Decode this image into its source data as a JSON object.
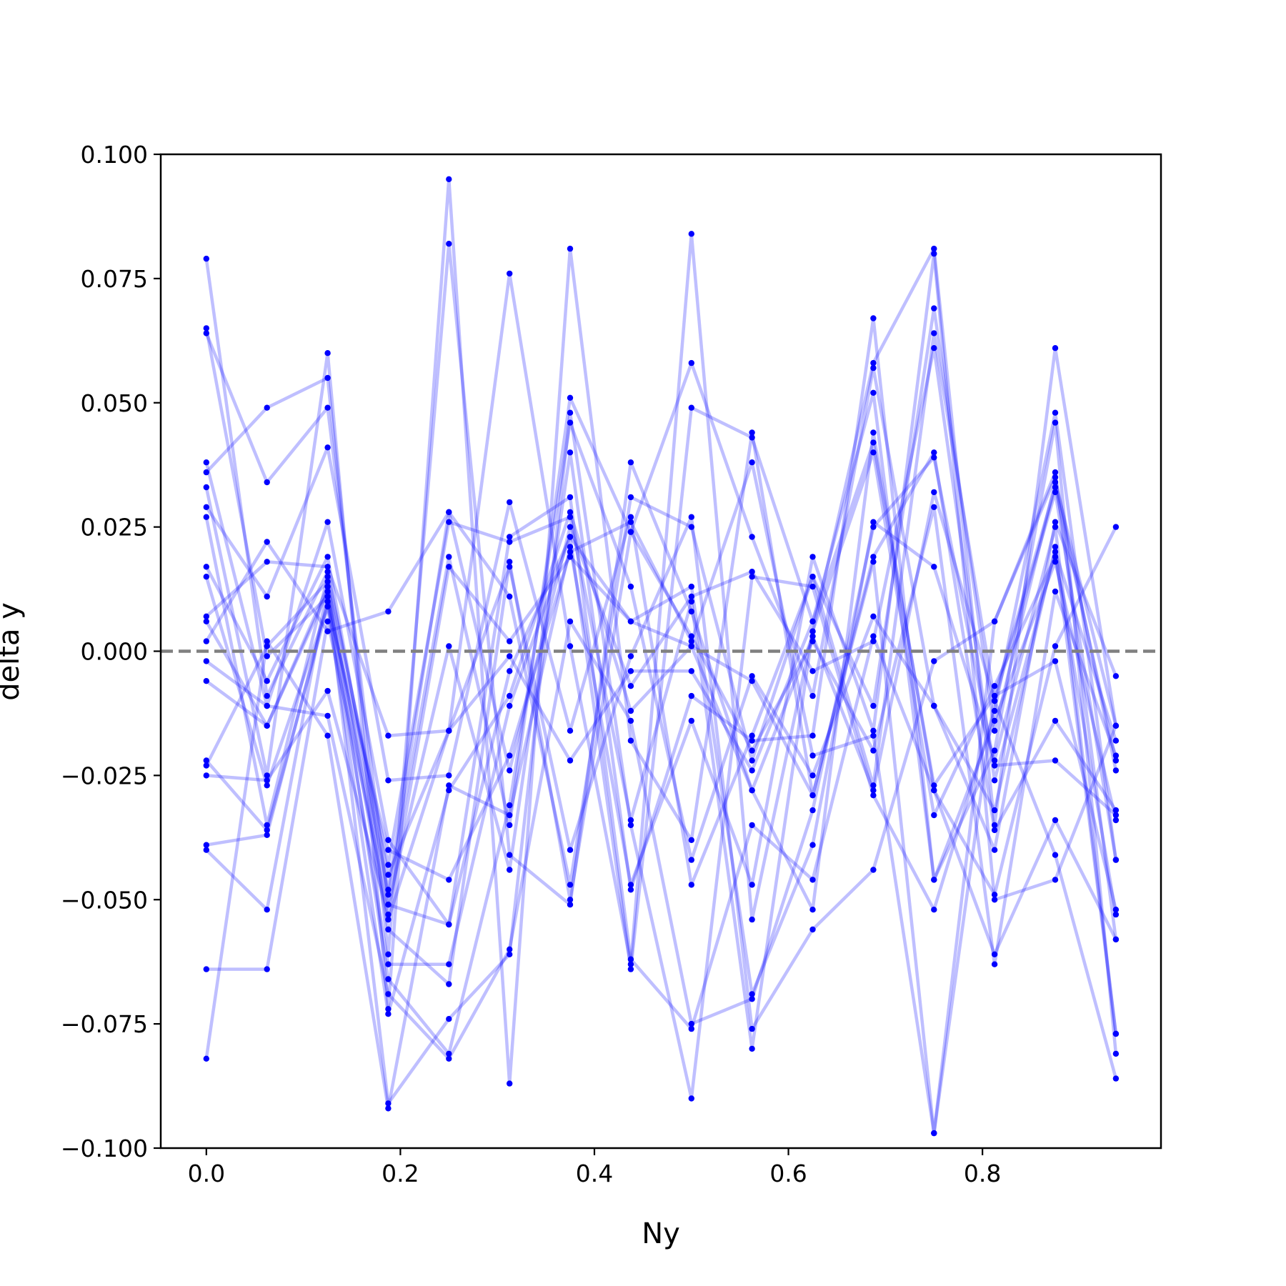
{
  "chart_data": {
    "type": "line",
    "xlabel": "Ny",
    "ylabel": "delta y",
    "xlim": [
      -0.047,
      0.984
    ],
    "ylim": [
      -0.1,
      0.1
    ],
    "x_ticks": [
      0.0,
      0.2,
      0.4,
      0.6,
      0.8
    ],
    "x_tick_labels": [
      "0.0",
      "0.2",
      "0.4",
      "0.6",
      "0.8"
    ],
    "y_ticks": [
      -0.1,
      -0.075,
      -0.05,
      -0.025,
      0.0,
      0.025,
      0.05,
      0.075,
      0.1
    ],
    "y_tick_labels": [
      "−0.100",
      "−0.075",
      "−0.050",
      "−0.025",
      "0.000",
      "0.025",
      "0.050",
      "0.075",
      "0.100"
    ],
    "reference_line": {
      "y": 0.0,
      "style": "dashed",
      "color": "#808080"
    },
    "line_color": "#0000ff",
    "line_opacity": 0.25,
    "marker_color": "#0000ff",
    "x": [
      0.0,
      0.0625,
      0.125,
      0.1875,
      0.25,
      0.3125,
      0.375,
      0.4375,
      0.5,
      0.5625,
      0.625,
      0.6875,
      0.75,
      0.8125,
      0.875,
      0.9375
    ],
    "series": [
      {
        "values": [
          0.079,
          -0.009,
          0.016,
          -0.045,
          -0.016,
          0.076,
          0.001,
          -0.063,
          0.084,
          -0.054,
          0.004,
          0.058,
          0.081,
          -0.035,
          0.061,
          -0.015
        ]
      },
      {
        "values": [
          0.065,
          -0.001,
          0.011,
          -0.048,
          0.028,
          0.011,
          -0.047,
          0.031,
          0.025,
          -0.022,
          0.015,
          -0.027,
          0.064,
          -0.01,
          0.032,
          -0.042
        ]
      },
      {
        "values": [
          0.064,
          0.034,
          0.049,
          -0.051,
          0.001,
          -0.044,
          0.04,
          -0.048,
          -0.009,
          -0.018,
          -0.017,
          0.067,
          -0.046,
          -0.02,
          0.046,
          -0.081
        ]
      },
      {
        "values": [
          0.038,
          -0.011,
          0.026,
          -0.038,
          -0.055,
          -0.004,
          0.023,
          0.006,
          0.013,
          -0.069,
          -0.039,
          0.026,
          0.017,
          -0.022,
          0.025,
          -0.077
        ]
      },
      {
        "values": [
          0.036,
          0.049,
          0.055,
          -0.061,
          0.082,
          -0.041,
          -0.051,
          0.038,
          0.008,
          -0.028,
          -0.052,
          0.044,
          -0.028,
          -0.049,
          0.001,
          0.025
        ]
      },
      {
        "values": [
          0.033,
          -0.025,
          0.06,
          -0.072,
          0.095,
          -0.087,
          0.081,
          -0.018,
          -0.038,
          0.044,
          -0.029,
          0.018,
          -0.097,
          0.006,
          0.036,
          -0.058
        ]
      },
      {
        "values": [
          0.029,
          0.011,
          0.041,
          -0.026,
          -0.025,
          0.03,
          -0.016,
          0.027,
          -0.047,
          -0.017,
          0.015,
          -0.011,
          0.069,
          -0.016,
          0.034,
          -0.015
        ]
      },
      {
        "values": [
          0.027,
          -0.035,
          0.015,
          -0.043,
          0.026,
          0.022,
          0.027,
          -0.034,
          0.01,
          -0.08,
          0.004,
          0.04,
          -0.033,
          -0.007,
          0.019,
          -0.053
        ]
      },
      {
        "values": [
          0.017,
          -0.006,
          0.019,
          -0.049,
          0.019,
          -0.035,
          0.051,
          0.024,
          0.003,
          -0.02,
          0.002,
          -0.02,
          0.029,
          -0.063,
          0.012,
          -0.021
        ]
      },
      {
        "values": [
          0.015,
          -0.027,
          0.009,
          -0.073,
          -0.028,
          -0.009,
          0.028,
          -0.012,
          0.001,
          -0.006,
          -0.029,
          0.019,
          0.04,
          -0.036,
          -0.014,
          -0.032
        ]
      },
      {
        "values": [
          0.007,
          0.018,
          0.017,
          -0.017,
          -0.016,
          0.017,
          -0.04,
          -0.001,
          0.027,
          -0.076,
          -0.056,
          -0.044,
          -0.002,
          0.006,
          0.035,
          -0.024
        ]
      },
      {
        "values": [
          0.006,
          -0.015,
          0.013,
          -0.066,
          -0.081,
          -0.031,
          0.046,
          0.013,
          -0.042,
          -0.005,
          -0.025,
          0.007,
          -0.011,
          -0.04,
          0.026,
          -0.005
        ]
      },
      {
        "values": [
          0.002,
          0.022,
          0.004,
          0.008,
          0.028,
          -0.024,
          0.025,
          -0.007,
          0.011,
          0.016,
          -0.004,
          0.002,
          0.061,
          -0.026,
          0.02,
          -0.018
        ]
      },
      {
        "values": [
          -0.002,
          -0.011,
          -0.013,
          -0.069,
          -0.082,
          -0.06,
          0.006,
          -0.014,
          -0.075,
          -0.07,
          -0.032,
          0.025,
          0.039,
          -0.023,
          -0.022,
          -0.033
        ]
      },
      {
        "values": [
          -0.006,
          -0.015,
          0.012,
          -0.091,
          -0.074,
          -0.061,
          0.048,
          -0.035,
          -0.09,
          0.015,
          0.013,
          -0.029,
          -0.052,
          -0.012,
          0.048,
          -0.042
        ]
      },
      {
        "values": [
          -0.022,
          -0.036,
          0.009,
          -0.04,
          -0.046,
          -0.021,
          0.02,
          0.026,
          0.002,
          0.038,
          -0.021,
          -0.017,
          -0.097,
          -0.009,
          0.033,
          -0.022
        ]
      },
      {
        "values": [
          -0.023,
          0.001,
          0.014,
          -0.054,
          -0.016,
          -0.001,
          -0.022,
          -0.004,
          -0.004,
          -0.024,
          0.006,
          0.042,
          -0.027,
          -0.009,
          -0.002,
          -0.052
        ]
      },
      {
        "values": [
          -0.025,
          -0.026,
          -0.008,
          -0.053,
          0.017,
          0.002,
          0.019,
          0.006,
          0.001,
          -0.028,
          0.003,
          -0.028,
          0.032,
          -0.01,
          -0.041,
          -0.086
        ]
      },
      {
        "values": [
          -0.039,
          -0.037,
          0.01,
          -0.063,
          -0.063,
          -0.011,
          0.023,
          -0.064,
          0.049,
          0.043,
          0.006,
          0.052,
          -0.046,
          -0.014,
          0.018,
          -0.034
        ]
      },
      {
        "values": [
          -0.04,
          -0.052,
          0.013,
          -0.056,
          -0.067,
          0.018,
          -0.05,
          0.024,
          0.058,
          0.023,
          -0.009,
          0.057,
          -0.011,
          -0.032,
          0.021,
          -0.077
        ]
      },
      {
        "values": [
          -0.064,
          -0.064,
          0.006,
          -0.051,
          -0.055,
          0.023,
          0.031,
          -0.062,
          -0.076,
          -0.035,
          -0.046,
          0.003,
          -0.028,
          -0.061,
          -0.034,
          -0.058
        ]
      },
      {
        "values": [
          -0.082,
          0.002,
          -0.017,
          -0.092,
          -0.027,
          -0.033,
          0.021,
          -0.047,
          -0.014,
          -0.047,
          0.019,
          -0.016,
          0.08,
          -0.05,
          -0.046,
          -0.015
        ]
      }
    ]
  }
}
